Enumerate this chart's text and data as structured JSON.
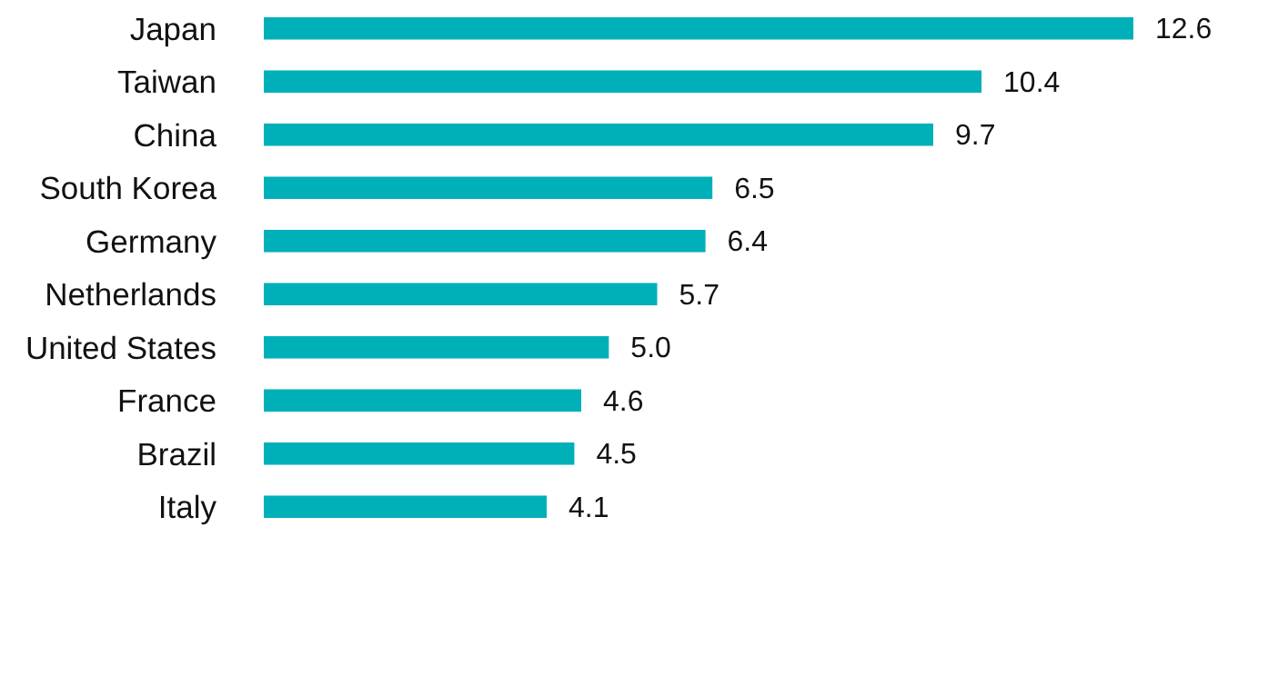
{
  "chart_data": {
    "type": "bar",
    "orientation": "horizontal",
    "categories": [
      "Japan",
      "Taiwan",
      "China",
      "South Korea",
      "Germany",
      "Netherlands",
      "United States",
      "France",
      "Brazil",
      "Italy"
    ],
    "values": [
      12.6,
      10.4,
      9.7,
      6.5,
      6.4,
      5.7,
      5.0,
      4.6,
      4.5,
      4.1
    ],
    "color": "#00b0b9",
    "data_labels": true,
    "value_labels": [
      "12.6",
      "10.4",
      "9.7",
      "6.5",
      "6.4",
      "5.7",
      "5.0",
      "4.6",
      "4.5",
      "4.1"
    ],
    "grid": false
  }
}
